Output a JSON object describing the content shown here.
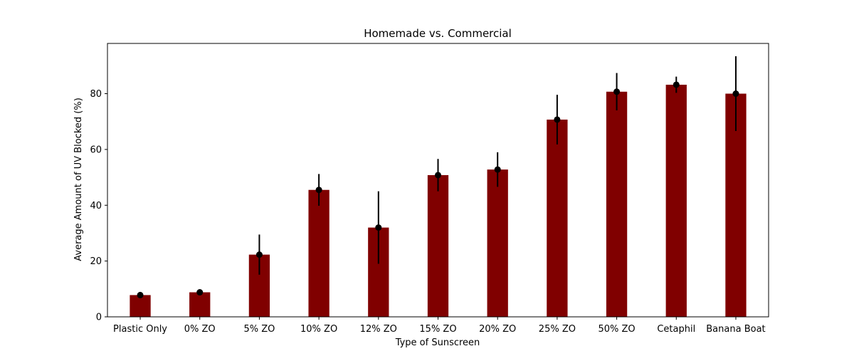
{
  "chart_data": {
    "type": "bar",
    "title": "Homemade vs. Commercial",
    "xlabel": "Type of Sunscreen",
    "ylabel": "Average Amount of UV Blocked (%)",
    "categories": [
      "Plastic Only",
      "0% ZO",
      "5% ZO",
      "10% ZO",
      "12% ZO",
      "15% ZO",
      "20% ZO",
      "25% ZO",
      "50% ZO",
      "Cetaphil",
      "Banana Boat"
    ],
    "values": [
      7.8,
      8.8,
      22.3,
      45.5,
      32.0,
      50.8,
      52.8,
      70.7,
      80.7,
      83.2,
      80.0
    ],
    "errors": [
      0.5,
      0.6,
      7.2,
      5.7,
      13.0,
      5.8,
      6.2,
      8.9,
      6.7,
      2.9,
      13.4
    ],
    "ylim": [
      0,
      98
    ],
    "yticks": [
      0,
      20,
      40,
      60,
      80
    ],
    "colors": {
      "bar": "#800000",
      "marker": "#000000",
      "error": "#000000"
    },
    "grid": false
  }
}
